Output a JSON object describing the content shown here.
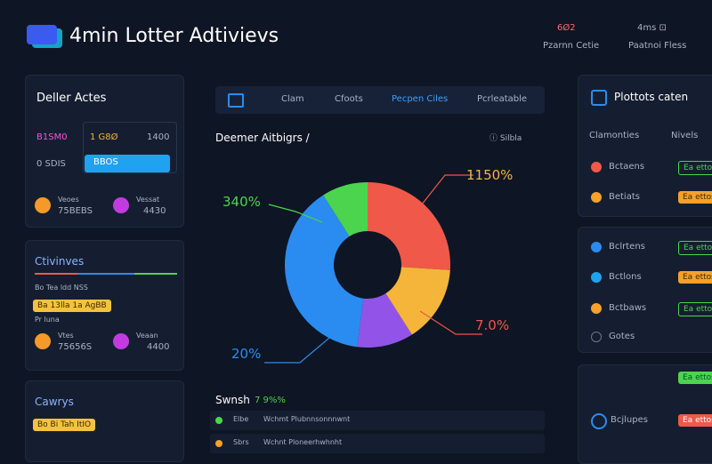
{
  "header": {
    "title": "4min Lotter Adtivievs",
    "stats": [
      {
        "value": "6Ø2",
        "label": "Pzarnn Cetie"
      },
      {
        "value": "4ms ⊡",
        "label": "Paatnoi Fless"
      }
    ]
  },
  "left": {
    "panel1": {
      "title": "Deller Actes",
      "cells": [
        "B1SM0",
        "1 G8Ø",
        "1400",
        "0 SDIS"
      ],
      "button": "BBOS",
      "items": [
        {
          "name": "Veoes",
          "value": "75BEBS"
        },
        {
          "name": "Vessat",
          "value": "4430"
        }
      ]
    },
    "panel2": {
      "title": "Ctivinves",
      "note": "Bo Tea ldd NSS",
      "tag": "Ba 13lla 1a AgBB",
      "sub": "Pr luna",
      "items": [
        {
          "name": "Vtes",
          "value": "75656S"
        },
        {
          "name": "Veaan",
          "value": "4400"
        }
      ]
    },
    "panel3": {
      "title": "Cawrys",
      "tag": "Bo Bi Tah ItIO"
    }
  },
  "center": {
    "tabs": [
      "Clam",
      "Cfoots",
      "Pecpen Ciles",
      "Pcrleatable"
    ],
    "chart_title": "Deemer Aitbigrs /",
    "tools": "ⓘ Silbla",
    "donut": {
      "labels": [
        "1150%",
        "340%",
        "7.0%",
        "20%"
      ],
      "slices": [
        {
          "color": "#f0584a",
          "value": 26
        },
        {
          "color": "#f5b53a",
          "value": 15
        },
        {
          "color": "#9254e8",
          "value": 11
        },
        {
          "color": "#2a8cf0",
          "value": 39
        },
        {
          "color": "#4dd44e",
          "value": 9
        }
      ]
    },
    "bottom": {
      "title": "Swnsh",
      "stat": "7 9%%",
      "rows": [
        {
          "code": "Elbe",
          "text": "Wchmt Plubnnsonnnwnt"
        },
        {
          "code": "Sbrs",
          "text": "Wchnt Ploneerhwhnht"
        }
      ]
    }
  },
  "right": {
    "title": "Plottots caten",
    "columns": [
      "Clamonties",
      "Nivels"
    ],
    "group1": [
      "Bctaens",
      "Betiats"
    ],
    "group2": [
      "Bclrtens",
      "Bctlons",
      "Bctbaws",
      "Gotes"
    ],
    "group3": [
      "Bcjlupes"
    ],
    "badge": "Ea ettos"
  }
}
